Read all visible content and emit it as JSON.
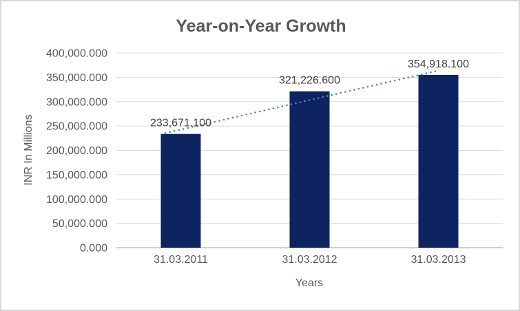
{
  "chart_data": {
    "type": "bar",
    "title": "Year-on-Year Growth",
    "xlabel": "Years",
    "ylabel": "INR In Millions",
    "categories": [
      "31.03.2011",
      "31.03.2012",
      "31.03.2013"
    ],
    "values": [
      233671.1,
      321226.6,
      354918.1
    ],
    "value_labels": [
      "233,671.100",
      "321,226.600",
      "354,918.100"
    ],
    "ylim": [
      0,
      400000
    ],
    "ytick_step": 50000,
    "ytick_labels": [
      "0.000",
      "50,000.000",
      "100,000.000",
      "150,000.000",
      "200,000.000",
      "250,000.000",
      "300,000.000",
      "350,000.000",
      "400,000.000"
    ],
    "grid": true,
    "legend": "none",
    "trendline": {
      "type": "linear",
      "style": "dotted"
    },
    "colors": {
      "bar": "#0D2461",
      "trendline": "#4E86C8",
      "gridline": "#D9D9D9",
      "axis_line": "#BFBFBF",
      "title_text": "#595959",
      "axis_text": "#595959",
      "label_text": "#404040",
      "background": "#FFFFFF",
      "border": "#D9D9D9"
    }
  }
}
